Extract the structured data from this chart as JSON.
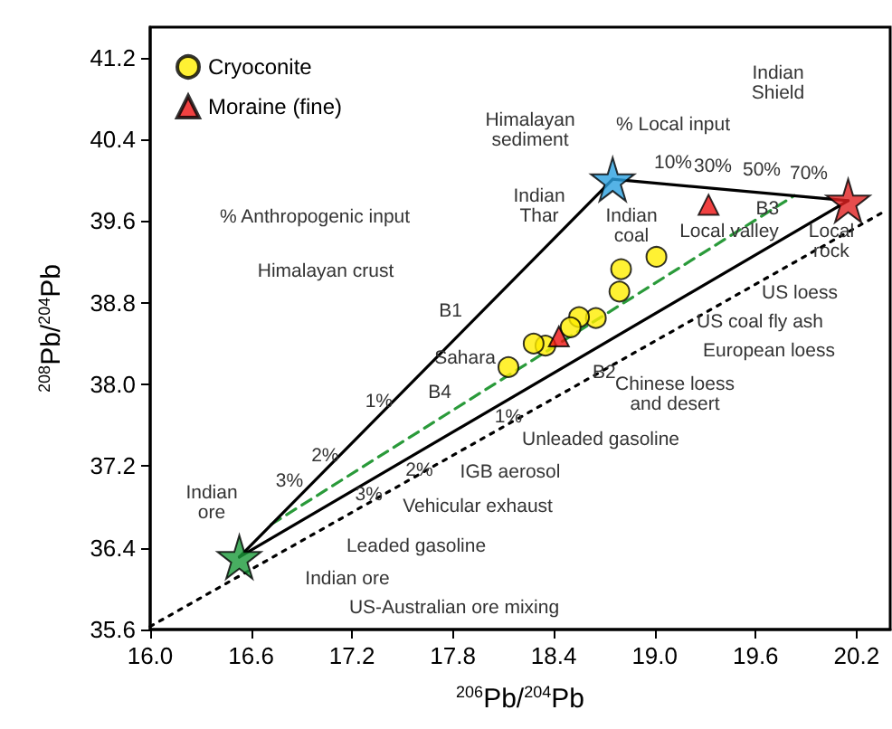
{
  "chart_data": {
    "type": "scatter",
    "xlabel": "$^{206}$Pb/$^{204}$Pb",
    "ylabel": "$^{208}$Pb/$^{204}$Pb",
    "xlim": [
      16.0,
      20.4
    ],
    "ylim": [
      35.6,
      41.5
    ],
    "xticks": [
      {
        "value": 16,
        "label": "16.0"
      },
      {
        "value": 16.6,
        "label": "16.6"
      },
      {
        "value": 17.2,
        "label": "17.2"
      },
      {
        "value": 17.8,
        "label": "17.8"
      },
      {
        "value": 18.4,
        "label": "18.4"
      },
      {
        "value": 19,
        "label": "19.0"
      },
      {
        "value": 19.6,
        "label": "19.6"
      },
      {
        "value": 20.2,
        "label": "20.2"
      }
    ],
    "yticks": [
      {
        "value": 35.6,
        "label": "35.6"
      },
      {
        "value": 36.4,
        "label": "36.4"
      },
      {
        "value": 37.2,
        "label": "37.2"
      },
      {
        "value": 38,
        "label": "38.0"
      },
      {
        "value": 38.8,
        "label": "38.8"
      },
      {
        "value": 39.6,
        "label": "39.6"
      },
      {
        "value": 40.4,
        "label": "40.4"
      },
      {
        "value": 41.2,
        "label": "41.2"
      }
    ],
    "grid": false,
    "legend": "top left",
    "series": [
      {
        "type": "line",
        "color": "#000000",
        "line_style": "dotted",
        "marker": "none",
        "x": [
          16.0,
          20.36
        ],
        "values": [
          35.63,
          39.69
        ]
      },
      {
        "type": "line",
        "color": "#2a9a3a",
        "line_style": "dashed",
        "marker": "none",
        "x": [
          16.72,
          19.83
        ],
        "values": [
          36.63,
          39.85
        ]
      },
      {
        "type": "line",
        "color": "#000000",
        "line_style": "solid",
        "marker": "none",
        "x": [
          16.53,
          18.75
        ],
        "values": [
          36.31,
          40.01
        ]
      },
      {
        "type": "line",
        "color": "#000000",
        "line_style": "solid",
        "marker": "none",
        "x": [
          16.53,
          20.15
        ],
        "values": [
          36.31,
          39.8
        ]
      },
      {
        "type": "line",
        "color": "#000000",
        "line_style": "solid",
        "marker": "none",
        "x": [
          18.75,
          20.15
        ],
        "values": [
          40.01,
          39.8
        ]
      },
      {
        "type": "scatter",
        "name": "Cryoconite",
        "color": "#ffee00",
        "marker": "circle",
        "x": [
          19.01,
          18.8,
          18.79,
          18.65,
          18.55,
          18.5,
          18.35,
          18.28,
          18.13
        ],
        "values": [
          39.25,
          39.13,
          38.91,
          38.65,
          38.66,
          38.56,
          38.38,
          38.4,
          38.17
        ]
      },
      {
        "type": "scatter",
        "name": "Moraine (fine)",
        "color": "#ee1111",
        "marker": "triangle",
        "x": [
          19.32,
          18.43
        ],
        "values": [
          39.76,
          38.47
        ]
      },
      {
        "type": "scatter",
        "marker": "star",
        "colors": [
          "#1a9a3a",
          "#2aa0e0",
          "#e02020"
        ],
        "x": [
          16.53,
          18.75,
          20.15
        ],
        "values": [
          36.31,
          40.01,
          39.8
        ]
      }
    ],
    "annotations": [
      "Himalayan\nsediment",
      "% Local input",
      "Indian\nShield",
      "Indian\nThar",
      "Indian\ncoal",
      "10%",
      "30%",
      "50%",
      "70%",
      {
        "text": "B3",
        "x": 19.67,
        "y": 39.72
      },
      "Local valley",
      {
        "text": "Local\nrock",
        "x": 20.05,
        "y": 39.4
      },
      "US loess",
      "US coal fly ash",
      "European loess",
      "Chinese loess\nand desert",
      "B1",
      {
        "text": "B2",
        "x": 18.7,
        "y": 38.12
      },
      "B4",
      "Himalayan crust",
      "Sahara",
      "% Anthropogenic input",
      "Unleaded gasoline",
      "IGB aerosol",
      "Vehicular exhaust",
      "Leaded gasoline",
      "Indian ore",
      "Indian\nore",
      "US-Australian ore mixing",
      {
        "text": "1%",
        "x": 17.36,
        "y": 37.83
      },
      {
        "text": "2%",
        "x": 17.04,
        "y": 37.3
      },
      "3%",
      {
        "text": "1%",
        "x": 18.13,
        "y": 37.68
      },
      {
        "text": "2%",
        "x": 17.6,
        "y": 37.16
      },
      {
        "text": "3%",
        "x": 17.3,
        "y": 36.92
      }
    ]
  }
}
